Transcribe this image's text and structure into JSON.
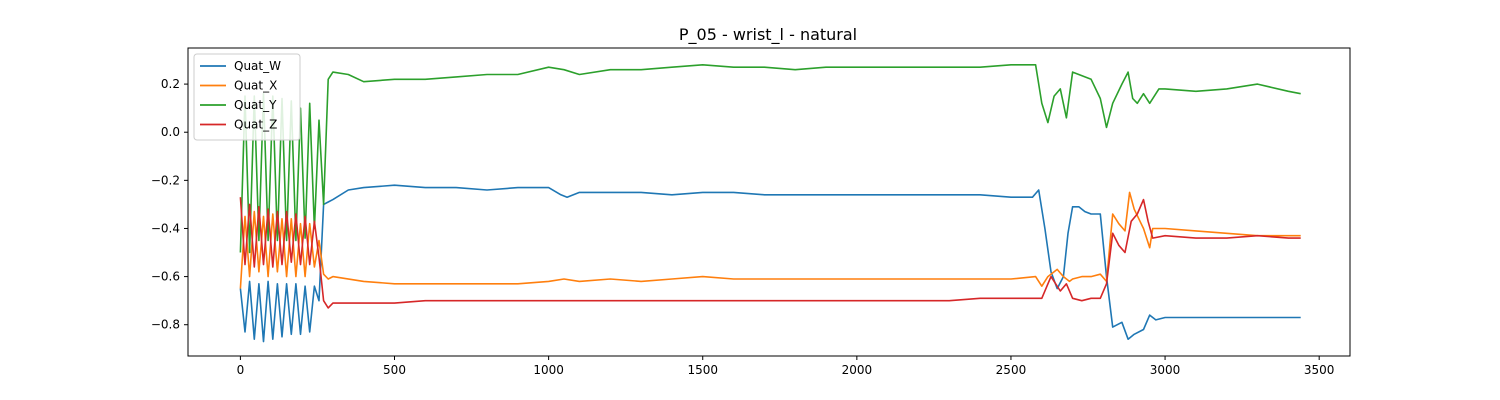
{
  "chart_data": {
    "type": "line",
    "title": "P_05 - wrist_l - natural",
    "xlabel": "",
    "ylabel": "",
    "xlim": [
      -170,
      3600
    ],
    "ylim": [
      -0.93,
      0.35
    ],
    "xticks": [
      0,
      500,
      1000,
      1500,
      2000,
      2500,
      3000,
      3500
    ],
    "yticks": [
      -0.8,
      -0.6,
      -0.4,
      -0.2,
      0.0,
      0.2
    ],
    "ytick_labels": [
      "−0.8",
      "−0.6",
      "−0.4",
      "−0.2",
      "0.0",
      "0.2"
    ],
    "grid": false,
    "legend_position": "upper-left",
    "series": [
      {
        "name": "Quat_W",
        "color": "#1f77b4",
        "points": [
          [
            0,
            -0.65
          ],
          [
            15,
            -0.83
          ],
          [
            30,
            -0.62
          ],
          [
            45,
            -0.86
          ],
          [
            60,
            -0.63
          ],
          [
            75,
            -0.87
          ],
          [
            90,
            -0.62
          ],
          [
            105,
            -0.86
          ],
          [
            120,
            -0.63
          ],
          [
            135,
            -0.85
          ],
          [
            150,
            -0.63
          ],
          [
            165,
            -0.84
          ],
          [
            180,
            -0.63
          ],
          [
            195,
            -0.84
          ],
          [
            210,
            -0.64
          ],
          [
            225,
            -0.83
          ],
          [
            240,
            -0.64
          ],
          [
            255,
            -0.7
          ],
          [
            270,
            -0.3
          ],
          [
            285,
            -0.29
          ],
          [
            300,
            -0.28
          ],
          [
            350,
            -0.24
          ],
          [
            400,
            -0.23
          ],
          [
            500,
            -0.22
          ],
          [
            600,
            -0.23
          ],
          [
            700,
            -0.23
          ],
          [
            800,
            -0.24
          ],
          [
            900,
            -0.23
          ],
          [
            1000,
            -0.23
          ],
          [
            1040,
            -0.26
          ],
          [
            1060,
            -0.27
          ],
          [
            1100,
            -0.25
          ],
          [
            1200,
            -0.25
          ],
          [
            1300,
            -0.25
          ],
          [
            1400,
            -0.26
          ],
          [
            1500,
            -0.25
          ],
          [
            1600,
            -0.25
          ],
          [
            1700,
            -0.26
          ],
          [
            1800,
            -0.26
          ],
          [
            1900,
            -0.26
          ],
          [
            2000,
            -0.26
          ],
          [
            2100,
            -0.26
          ],
          [
            2200,
            -0.26
          ],
          [
            2300,
            -0.26
          ],
          [
            2400,
            -0.26
          ],
          [
            2500,
            -0.27
          ],
          [
            2570,
            -0.27
          ],
          [
            2590,
            -0.24
          ],
          [
            2610,
            -0.4
          ],
          [
            2630,
            -0.58
          ],
          [
            2650,
            -0.65
          ],
          [
            2670,
            -0.6
          ],
          [
            2685,
            -0.42
          ],
          [
            2700,
            -0.31
          ],
          [
            2720,
            -0.31
          ],
          [
            2740,
            -0.33
          ],
          [
            2760,
            -0.34
          ],
          [
            2790,
            -0.34
          ],
          [
            2810,
            -0.6
          ],
          [
            2830,
            -0.81
          ],
          [
            2860,
            -0.79
          ],
          [
            2880,
            -0.86
          ],
          [
            2900,
            -0.84
          ],
          [
            2930,
            -0.82
          ],
          [
            2950,
            -0.76
          ],
          [
            2970,
            -0.78
          ],
          [
            3000,
            -0.77
          ],
          [
            3100,
            -0.77
          ],
          [
            3200,
            -0.77
          ],
          [
            3300,
            -0.77
          ],
          [
            3400,
            -0.77
          ],
          [
            3440,
            -0.77
          ]
        ]
      },
      {
        "name": "Quat_X",
        "color": "#ff7f0e",
        "points": [
          [
            0,
            -0.65
          ],
          [
            15,
            -0.35
          ],
          [
            30,
            -0.6
          ],
          [
            45,
            -0.33
          ],
          [
            60,
            -0.58
          ],
          [
            75,
            -0.35
          ],
          [
            90,
            -0.6
          ],
          [
            105,
            -0.34
          ],
          [
            120,
            -0.58
          ],
          [
            135,
            -0.36
          ],
          [
            150,
            -0.6
          ],
          [
            165,
            -0.36
          ],
          [
            180,
            -0.6
          ],
          [
            195,
            -0.38
          ],
          [
            210,
            -0.6
          ],
          [
            225,
            -0.38
          ],
          [
            240,
            -0.56
          ],
          [
            255,
            -0.45
          ],
          [
            270,
            -0.59
          ],
          [
            285,
            -0.61
          ],
          [
            300,
            -0.6
          ],
          [
            400,
            -0.62
          ],
          [
            500,
            -0.63
          ],
          [
            600,
            -0.63
          ],
          [
            700,
            -0.63
          ],
          [
            800,
            -0.63
          ],
          [
            900,
            -0.63
          ],
          [
            1000,
            -0.62
          ],
          [
            1050,
            -0.61
          ],
          [
            1100,
            -0.62
          ],
          [
            1200,
            -0.61
          ],
          [
            1300,
            -0.62
          ],
          [
            1400,
            -0.61
          ],
          [
            1500,
            -0.6
          ],
          [
            1600,
            -0.61
          ],
          [
            1700,
            -0.61
          ],
          [
            1800,
            -0.61
          ],
          [
            1900,
            -0.61
          ],
          [
            2000,
            -0.61
          ],
          [
            2100,
            -0.61
          ],
          [
            2200,
            -0.61
          ],
          [
            2300,
            -0.61
          ],
          [
            2400,
            -0.61
          ],
          [
            2500,
            -0.61
          ],
          [
            2580,
            -0.6
          ],
          [
            2600,
            -0.64
          ],
          [
            2620,
            -0.6
          ],
          [
            2650,
            -0.57
          ],
          [
            2670,
            -0.6
          ],
          [
            2690,
            -0.62
          ],
          [
            2700,
            -0.61
          ],
          [
            2730,
            -0.6
          ],
          [
            2760,
            -0.6
          ],
          [
            2790,
            -0.59
          ],
          [
            2810,
            -0.62
          ],
          [
            2830,
            -0.34
          ],
          [
            2850,
            -0.38
          ],
          [
            2870,
            -0.41
          ],
          [
            2885,
            -0.25
          ],
          [
            2900,
            -0.32
          ],
          [
            2930,
            -0.4
          ],
          [
            2950,
            -0.48
          ],
          [
            2960,
            -0.4
          ],
          [
            3000,
            -0.4
          ],
          [
            3100,
            -0.41
          ],
          [
            3200,
            -0.42
          ],
          [
            3300,
            -0.43
          ],
          [
            3400,
            -0.43
          ],
          [
            3440,
            -0.43
          ]
        ]
      },
      {
        "name": "Quat_Y",
        "color": "#2ca02c",
        "points": [
          [
            0,
            -0.5
          ],
          [
            15,
            0.15
          ],
          [
            30,
            -0.5
          ],
          [
            45,
            0.15
          ],
          [
            60,
            -0.45
          ],
          [
            75,
            0.16
          ],
          [
            90,
            -0.45
          ],
          [
            105,
            0.15
          ],
          [
            120,
            -0.45
          ],
          [
            135,
            0.14
          ],
          [
            150,
            -0.45
          ],
          [
            165,
            0.13
          ],
          [
            180,
            -0.45
          ],
          [
            195,
            0.1
          ],
          [
            210,
            -0.44
          ],
          [
            225,
            0.12
          ],
          [
            240,
            -0.4
          ],
          [
            255,
            0.05
          ],
          [
            270,
            -0.3
          ],
          [
            285,
            0.22
          ],
          [
            300,
            0.25
          ],
          [
            350,
            0.24
          ],
          [
            400,
            0.21
          ],
          [
            500,
            0.22
          ],
          [
            600,
            0.22
          ],
          [
            700,
            0.23
          ],
          [
            800,
            0.24
          ],
          [
            900,
            0.24
          ],
          [
            1000,
            0.27
          ],
          [
            1050,
            0.26
          ],
          [
            1100,
            0.24
          ],
          [
            1200,
            0.26
          ],
          [
            1300,
            0.26
          ],
          [
            1400,
            0.27
          ],
          [
            1500,
            0.28
          ],
          [
            1600,
            0.27
          ],
          [
            1700,
            0.27
          ],
          [
            1800,
            0.26
          ],
          [
            1900,
            0.27
          ],
          [
            2000,
            0.27
          ],
          [
            2100,
            0.27
          ],
          [
            2200,
            0.27
          ],
          [
            2300,
            0.27
          ],
          [
            2400,
            0.27
          ],
          [
            2500,
            0.28
          ],
          [
            2580,
            0.28
          ],
          [
            2600,
            0.12
          ],
          [
            2620,
            0.04
          ],
          [
            2640,
            0.15
          ],
          [
            2660,
            0.18
          ],
          [
            2680,
            0.06
          ],
          [
            2700,
            0.25
          ],
          [
            2720,
            0.24
          ],
          [
            2760,
            0.22
          ],
          [
            2790,
            0.14
          ],
          [
            2810,
            0.02
          ],
          [
            2830,
            0.12
          ],
          [
            2860,
            0.2
          ],
          [
            2880,
            0.25
          ],
          [
            2895,
            0.14
          ],
          [
            2910,
            0.12
          ],
          [
            2930,
            0.16
          ],
          [
            2950,
            0.12
          ],
          [
            2980,
            0.18
          ],
          [
            3000,
            0.18
          ],
          [
            3100,
            0.17
          ],
          [
            3200,
            0.18
          ],
          [
            3300,
            0.2
          ],
          [
            3400,
            0.17
          ],
          [
            3440,
            0.16
          ]
        ]
      },
      {
        "name": "Quat_Z",
        "color": "#d62728",
        "points": [
          [
            0,
            -0.27
          ],
          [
            15,
            -0.55
          ],
          [
            30,
            -0.3
          ],
          [
            45,
            -0.56
          ],
          [
            60,
            -0.31
          ],
          [
            75,
            -0.55
          ],
          [
            90,
            -0.32
          ],
          [
            105,
            -0.56
          ],
          [
            120,
            -0.33
          ],
          [
            135,
            -0.55
          ],
          [
            150,
            -0.33
          ],
          [
            165,
            -0.54
          ],
          [
            180,
            -0.34
          ],
          [
            195,
            -0.55
          ],
          [
            210,
            -0.35
          ],
          [
            225,
            -0.55
          ],
          [
            240,
            -0.37
          ],
          [
            255,
            -0.52
          ],
          [
            270,
            -0.7
          ],
          [
            285,
            -0.73
          ],
          [
            300,
            -0.71
          ],
          [
            400,
            -0.71
          ],
          [
            500,
            -0.71
          ],
          [
            600,
            -0.7
          ],
          [
            700,
            -0.7
          ],
          [
            800,
            -0.7
          ],
          [
            900,
            -0.7
          ],
          [
            1000,
            -0.7
          ],
          [
            1100,
            -0.7
          ],
          [
            1200,
            -0.7
          ],
          [
            1300,
            -0.7
          ],
          [
            1400,
            -0.7
          ],
          [
            1500,
            -0.7
          ],
          [
            1600,
            -0.7
          ],
          [
            1700,
            -0.7
          ],
          [
            1800,
            -0.7
          ],
          [
            1900,
            -0.7
          ],
          [
            2000,
            -0.7
          ],
          [
            2100,
            -0.7
          ],
          [
            2200,
            -0.7
          ],
          [
            2300,
            -0.7
          ],
          [
            2400,
            -0.69
          ],
          [
            2500,
            -0.69
          ],
          [
            2580,
            -0.69
          ],
          [
            2600,
            -0.69
          ],
          [
            2630,
            -0.6
          ],
          [
            2660,
            -0.66
          ],
          [
            2680,
            -0.63
          ],
          [
            2700,
            -0.69
          ],
          [
            2730,
            -0.7
          ],
          [
            2760,
            -0.69
          ],
          [
            2790,
            -0.69
          ],
          [
            2810,
            -0.63
          ],
          [
            2830,
            -0.42
          ],
          [
            2850,
            -0.47
          ],
          [
            2870,
            -0.5
          ],
          [
            2890,
            -0.37
          ],
          [
            2910,
            -0.34
          ],
          [
            2930,
            -0.28
          ],
          [
            2945,
            -0.37
          ],
          [
            2960,
            -0.44
          ],
          [
            3000,
            -0.43
          ],
          [
            3100,
            -0.44
          ],
          [
            3200,
            -0.44
          ],
          [
            3300,
            -0.43
          ],
          [
            3400,
            -0.44
          ],
          [
            3440,
            -0.44
          ]
        ]
      }
    ]
  }
}
